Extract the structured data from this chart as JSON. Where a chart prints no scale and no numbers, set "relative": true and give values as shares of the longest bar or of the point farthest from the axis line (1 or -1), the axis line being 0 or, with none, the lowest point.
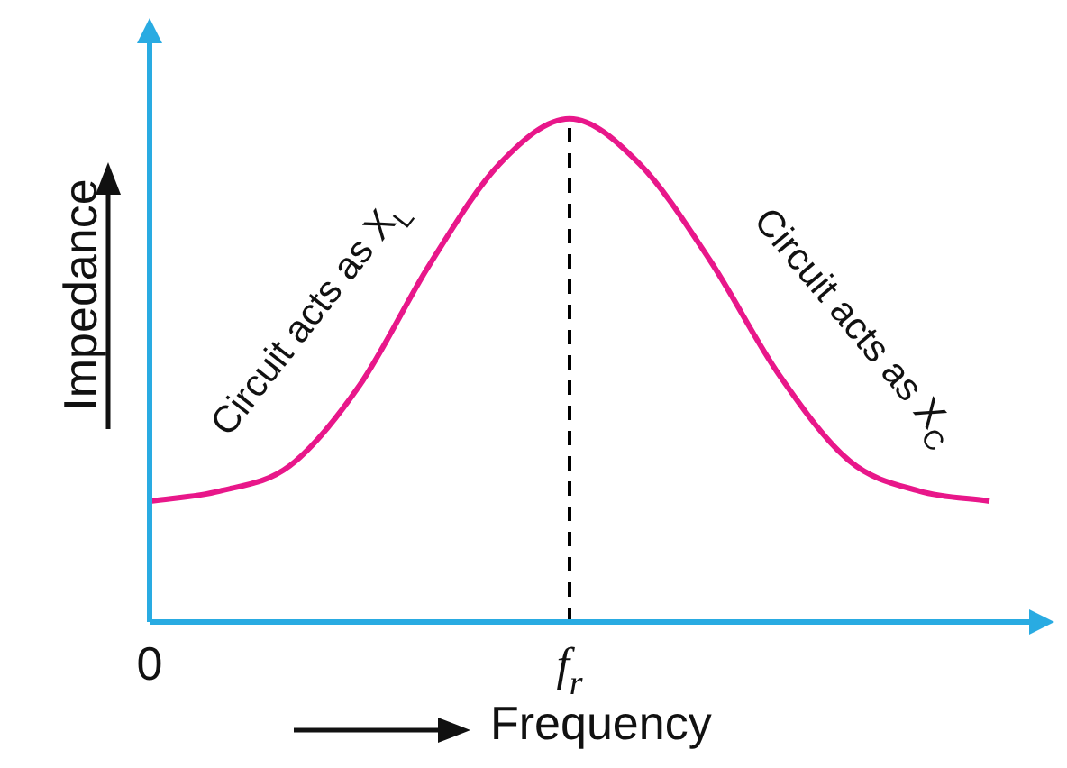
{
  "chart_data": {
    "type": "line",
    "relative": true,
    "xlabel": "Frequency",
    "ylabel": "Impedance",
    "categories": [
      "0",
      null,
      null,
      null,
      null,
      null,
      "f$_{r}$",
      null,
      null,
      null,
      null,
      null,
      null
    ],
    "series": [
      {
        "color": "#e8178a",
        "values": [
          0.24,
          0.26,
          0.31,
          0.47,
          0.71,
          0.91,
          1,
          0.91,
          0.72,
          0.49,
          0.32,
          0.26,
          0.24
        ]
      }
    ],
    "ref_lines": [
      {
        "axis": "x",
        "value": "f$_{r}$",
        "color": "#000000",
        "line_style": "dashed"
      }
    ],
    "annotations": [
      "Circuit acts as X$_{L}$",
      "Circuit acts as X$_{C}$"
    ],
    "tick_labels": "x",
    "grid": false,
    "legend": false,
    "marker": "none",
    "line_style": "solid"
  }
}
